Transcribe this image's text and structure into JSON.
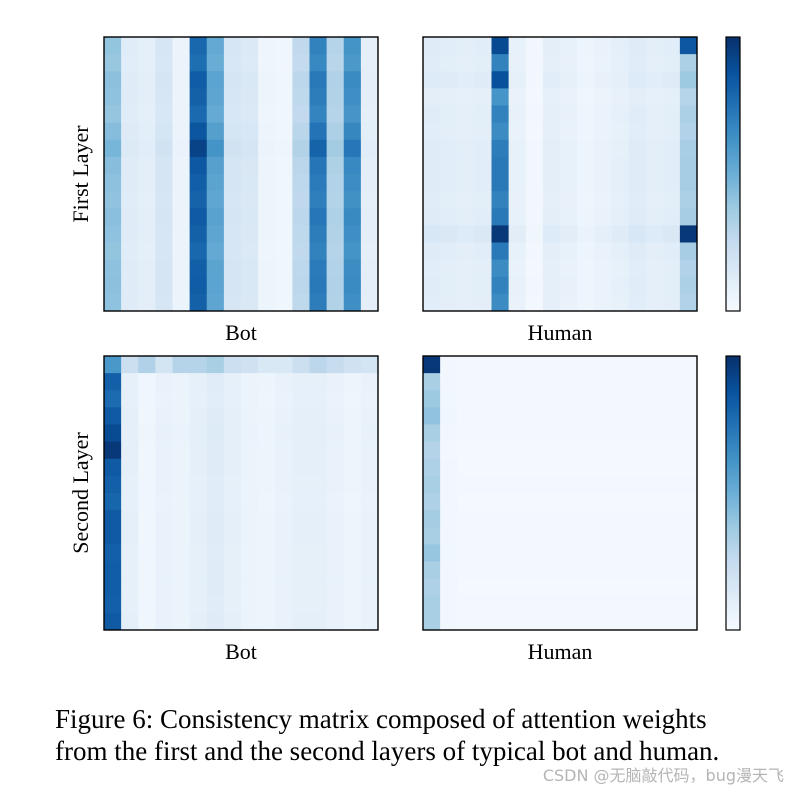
{
  "chart_data": {
    "type": "heatmap",
    "colormap": [
      "#f7fbff",
      "#deebf7",
      "#c6dbef",
      "#9ecae1",
      "#6baed6",
      "#4292c6",
      "#2171b5",
      "#08519c",
      "#08306b"
    ],
    "rows": 16,
    "cols": 16,
    "row_titles": [
      "First Layer",
      "Second Layer"
    ],
    "panels": [
      {
        "layer": "First Layer",
        "xlabel": "Bot",
        "col_values": [
          0.42,
          0.12,
          0.1,
          0.17,
          0.06,
          0.83,
          0.55,
          0.17,
          0.15,
          0.05,
          0.04,
          0.28,
          0.72,
          0.32,
          0.65,
          0.1
        ],
        "row_scale": [
          0.95,
          0.92,
          1.0,
          0.98,
          0.94,
          1.03,
          1.12,
          1.02,
          0.99,
          0.97,
          1.01,
          0.98,
          0.95,
          0.99,
          1.0,
          0.98
        ]
      },
      {
        "layer": "First Layer",
        "xlabel": "Human",
        "col_values": [
          0.12,
          0.11,
          0.1,
          0.11,
          0.72,
          0.08,
          0.03,
          0.1,
          0.08,
          0.05,
          0.07,
          0.09,
          0.12,
          0.1,
          0.11,
          0.35
        ],
        "row_scale": [
          1.0,
          0.95,
          1.08,
          0.85,
          0.95,
          0.9,
          0.98,
          1.0,
          1.0,
          0.95,
          1.0,
          1.32,
          1.0,
          0.9,
          0.95,
          0.9
        ],
        "overrides": [
          [
            0,
            4,
            0.9
          ],
          [
            2,
            4,
            0.88
          ],
          [
            11,
            4,
            0.97
          ],
          [
            0,
            15,
            0.85
          ],
          [
            11,
            15,
            0.97
          ]
        ]
      },
      {
        "layer": "Second Layer",
        "xlabel": "Bot",
        "col_values": [
          0.84,
          0.09,
          0.04,
          0.07,
          0.06,
          0.09,
          0.12,
          0.09,
          0.06,
          0.05,
          0.07,
          0.09,
          0.09,
          0.07,
          0.05,
          0.07
        ],
        "row_scale": [
          1.0,
          0.97,
          0.92,
          1.0,
          1.07,
          1.0,
          1.0,
          0.97,
          0.95,
          1.0,
          1.0,
          0.97,
          0.98,
          0.98,
          0.97,
          1.0
        ],
        "overrides": [
          [
            0,
            1,
            0.22
          ],
          [
            0,
            2,
            0.32
          ],
          [
            0,
            3,
            0.18
          ],
          [
            0,
            4,
            0.3
          ],
          [
            0,
            5,
            0.3
          ],
          [
            0,
            6,
            0.34
          ],
          [
            0,
            7,
            0.22
          ],
          [
            0,
            8,
            0.2
          ],
          [
            0,
            9,
            0.15
          ],
          [
            0,
            10,
            0.15
          ],
          [
            0,
            11,
            0.22
          ],
          [
            0,
            12,
            0.28
          ],
          [
            0,
            13,
            0.24
          ],
          [
            0,
            14,
            0.2
          ],
          [
            0,
            15,
            0.18
          ],
          [
            0,
            0,
            0.6
          ],
          [
            5,
            0,
            0.97
          ]
        ]
      },
      {
        "layer": "Second Layer",
        "xlabel": "Human",
        "col_values": [
          0.34,
          0.03,
          0.02,
          0.02,
          0.02,
          0.02,
          0.02,
          0.02,
          0.02,
          0.02,
          0.02,
          0.02,
          0.02,
          0.02,
          0.02,
          0.02
        ],
        "row_scale": [
          1.0,
          1.0,
          1.1,
          1.2,
          1.0,
          0.9,
          0.95,
          1.0,
          0.95,
          1.05,
          1.0,
          1.15,
          1.0,
          0.95,
          1.0,
          1.0
        ],
        "overrides": [
          [
            0,
            0,
            0.97
          ]
        ]
      }
    ]
  },
  "caption": {
    "line1": "Figure 6: Consistency matrix composed of attention weights",
    "line2": "from the first and the second layers of typical bot and human."
  },
  "watermark": "CSDN @无脑敲代码，bug漫天飞"
}
